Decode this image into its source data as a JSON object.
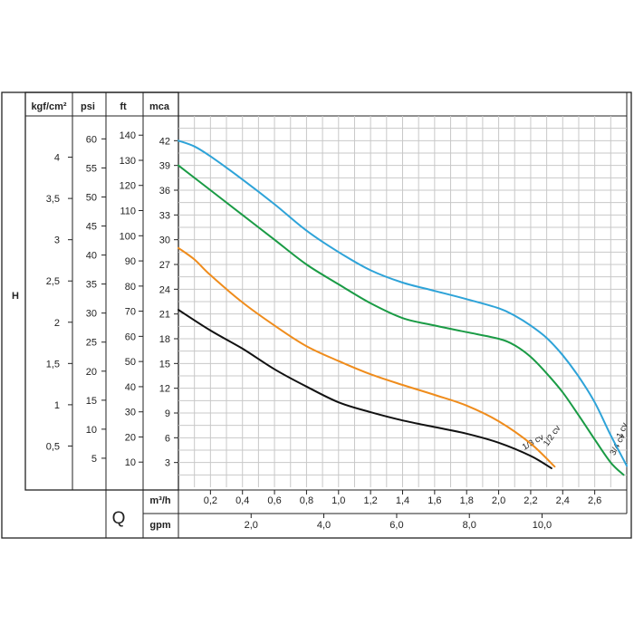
{
  "chart_data": {
    "type": "line",
    "title": "",
    "head_axis_symbol": "H",
    "flow_axis_symbol": "Q",
    "x_axes": [
      {
        "unit": "m³/h",
        "range": [
          0,
          2.8
        ],
        "ticks": [
          0.2,
          0.4,
          0.6,
          0.8,
          1.0,
          1.2,
          1.4,
          1.6,
          1.8,
          2.0,
          2.2,
          2.4,
          2.6
        ],
        "tick_labels": [
          "0,2",
          "0,4",
          "0,6",
          "0,8",
          "1,0",
          "1,2",
          "1,4",
          "1,6",
          "1,8",
          "2,0",
          "2,2",
          "2,4",
          "2,6"
        ]
      },
      {
        "unit": "gpm",
        "ticks_m3h": [
          0.454,
          0.908,
          1.363,
          1.817,
          2.271
        ],
        "tick_labels": [
          "2,0",
          "4,0",
          "6,0",
          "8,0",
          "10,0"
        ]
      }
    ],
    "y_axes": [
      {
        "unit": "kgf/cm²",
        "ticks_mca": [
          5,
          10,
          15,
          20,
          25,
          30,
          35,
          40
        ],
        "tick_labels": [
          "0,5",
          "1",
          "1,5",
          "2",
          "2,5",
          "3",
          "3,5",
          "4"
        ]
      },
      {
        "unit": "psi",
        "ticks_mca": [
          3.52,
          7.04,
          10.55,
          14.07,
          17.59,
          21.11,
          24.63,
          28.14,
          31.66,
          35.18,
          38.7,
          42.22
        ],
        "tick_labels": [
          "5",
          "10",
          "15",
          "20",
          "25",
          "30",
          "35",
          "40",
          "45",
          "50",
          "55",
          "60"
        ]
      },
      {
        "unit": "ft",
        "ticks_mca": [
          3.05,
          6.1,
          9.14,
          12.19,
          15.24,
          18.29,
          21.34,
          24.38,
          27.43,
          30.48,
          33.53,
          36.58,
          39.62,
          42.67
        ],
        "tick_labels": [
          "10",
          "20",
          "30",
          "40",
          "50",
          "60",
          "70",
          "80",
          "90",
          "100",
          "110",
          "120",
          "130",
          "140"
        ]
      },
      {
        "unit": "mca",
        "range": [
          0,
          45
        ],
        "ticks": [
          3,
          6,
          9,
          12,
          15,
          18,
          21,
          24,
          27,
          30,
          33,
          36,
          39,
          42
        ],
        "tick_labels": [
          "3",
          "6",
          "9",
          "12",
          "15",
          "18",
          "21",
          "24",
          "27",
          "30",
          "33",
          "36",
          "39",
          "42"
        ]
      }
    ],
    "grid": true,
    "legend": "none",
    "series": [
      {
        "name": "1/3 cv",
        "color": "#111111",
        "x": [
          0,
          0.2,
          0.4,
          0.6,
          0.8,
          1.0,
          1.2,
          1.4,
          1.6,
          1.8,
          2.0,
          2.2,
          2.33
        ],
        "y": [
          21.5,
          19.0,
          16.8,
          14.3,
          12.2,
          10.3,
          9.1,
          8.1,
          7.3,
          6.5,
          5.4,
          3.8,
          2.3
        ]
      },
      {
        "name": "1/2 cv",
        "color": "#ef8c1c",
        "x": [
          0,
          0.1,
          0.2,
          0.4,
          0.6,
          0.8,
          1.0,
          1.2,
          1.4,
          1.6,
          1.8,
          2.0,
          2.2,
          2.35
        ],
        "y": [
          29.0,
          27.6,
          25.7,
          22.4,
          19.6,
          17.1,
          15.3,
          13.7,
          12.4,
          11.2,
          9.9,
          8.0,
          5.3,
          2.5
        ]
      },
      {
        "name": "3/4 cv",
        "color": "#1a9b45",
        "x": [
          0,
          0.2,
          0.4,
          0.6,
          0.8,
          1.0,
          1.2,
          1.4,
          1.6,
          1.8,
          2.0,
          2.1,
          2.2,
          2.3,
          2.4,
          2.5,
          2.6,
          2.7,
          2.78
        ],
        "y": [
          39.0,
          36.0,
          33.0,
          30.0,
          27.0,
          24.6,
          22.3,
          20.5,
          19.6,
          18.8,
          18.0,
          17.2,
          15.8,
          13.8,
          11.5,
          8.7,
          5.8,
          3.0,
          1.5
        ]
      },
      {
        "name": "1 cv",
        "color": "#2ea3d8",
        "x": [
          0,
          0.1,
          0.2,
          0.4,
          0.6,
          0.8,
          1.0,
          1.2,
          1.4,
          1.6,
          1.8,
          2.0,
          2.1,
          2.2,
          2.3,
          2.4,
          2.5,
          2.6,
          2.7,
          2.8
        ],
        "y": [
          42.0,
          41.3,
          40.1,
          37.3,
          34.3,
          31.1,
          28.5,
          26.3,
          24.8,
          23.8,
          22.8,
          21.7,
          20.8,
          19.6,
          18.1,
          16.0,
          13.4,
          10.3,
          6.3,
          2.6
        ]
      }
    ]
  }
}
